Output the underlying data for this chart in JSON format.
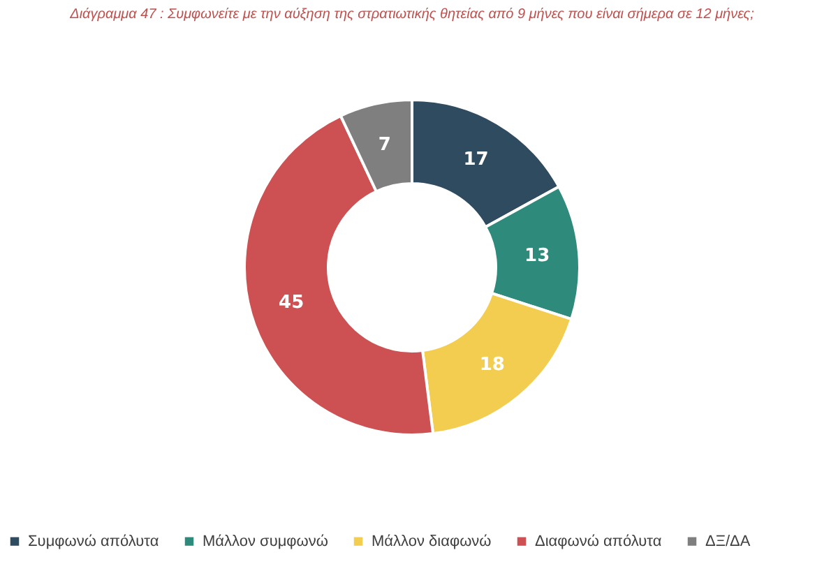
{
  "chart_data": {
    "type": "donut",
    "title": "Διάγραμμα 47 : Συμφωνείτε με την αύξηση της στρατιωτικής θητείας από 9 μήνες που είναι σήμερα σε 12 μήνες;",
    "categories": [
      "Συμφωνώ απόλυτα",
      "Μάλλον συμφωνώ",
      "Μάλλον διαφωνώ",
      "Διαφωνώ απόλυτα",
      "ΔΞ/ΔΑ"
    ],
    "values": [
      17,
      13,
      18,
      45,
      7
    ],
    "colors": [
      "#2e4b5f",
      "#2e8b7c",
      "#f2cd4f",
      "#cd5152",
      "#7f7f7f"
    ],
    "data_labels": true,
    "legend": "bottom"
  }
}
